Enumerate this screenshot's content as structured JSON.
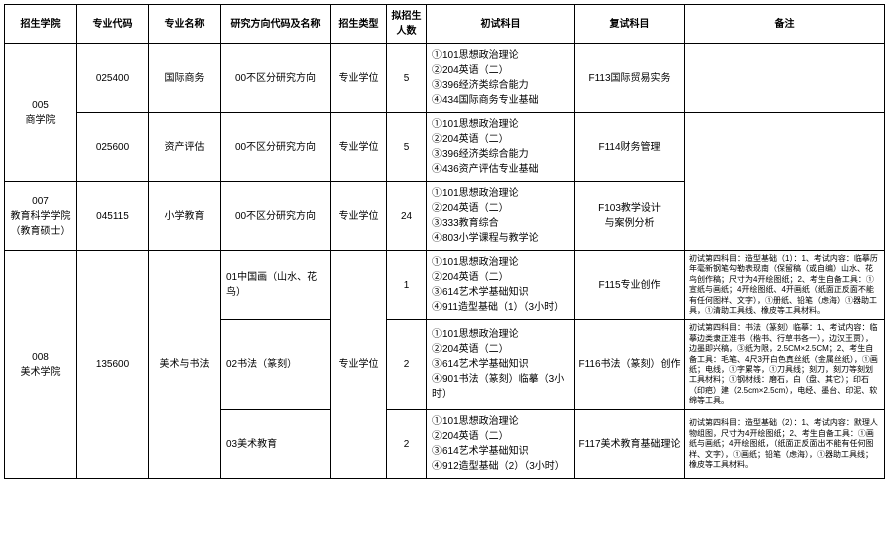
{
  "headers": {
    "college": "招生学院",
    "major_code": "专业代码",
    "major_name": "专业名称",
    "direction": "研究方向代码及名称",
    "type": "招生类型",
    "quota": "拟招生人数",
    "prelim": "初试科目",
    "retest": "复试科目",
    "notes": "备注"
  },
  "colleges": {
    "c005": "005\n商学院",
    "c007": "007\n教育科学学院\n（教育硕士）",
    "c008": "008\n美术学院"
  },
  "rows": {
    "r1": {
      "code": "025400",
      "name": "国际商务",
      "direction": "00不区分研究方向",
      "type": "专业学位",
      "quota": "5",
      "prelim": "①101思想政治理论\n②204英语（二）\n③396经济类综合能力\n④434国际商务专业基础",
      "retest": "F113国际贸易实务",
      "notes": ""
    },
    "r2": {
      "code": "025600",
      "name": "资产评估",
      "direction": "00不区分研究方向",
      "type": "专业学位",
      "quota": "5",
      "prelim": "①101思想政治理论\n②204英语（二）\n③396经济类综合能力\n④436资产评估专业基础",
      "retest": "F114财务管理",
      "notes": ""
    },
    "r3": {
      "code": "045115",
      "name": "小学教育",
      "direction": "00不区分研究方向",
      "type": "专业学位",
      "quota": "24",
      "prelim": "①101思想政治理论\n②204英语（二）\n③333教育综合\n④803小学课程与教学论",
      "retest": "F103教学设计\n与案例分析",
      "notes": ""
    },
    "r4": {
      "code": "135600",
      "name": "美术与书法",
      "direction": "01中国画（山水、花鸟）",
      "type": "专业学位",
      "quota": "1",
      "prelim": "①101思想政治理论\n②204英语（二）\n③614艺术学基础知识\n④911造型基础（1）（3小时）",
      "retest": "F115专业创作",
      "notes": "初试第四科目：造型基础（1）：1、考试内容：临摹历年毫新钢笔勾勒表现南（保留稿（或自编）山水、花鸟创作稿；尺寸为4开绘图纸；2、考生自备工具：①宣纸与画纸；4开绘图纸、4开画纸（纸面正反面不能有任何图样、文字），①册纸、铅笔（虑海）①器助工具，①清助工具线、橡皮等工具材料。"
    },
    "r5": {
      "direction": "02书法（篆刻）",
      "quota": "2",
      "prelim": "①101思想政治理论\n②204英语（二）\n③614艺术学基础知识\n④901书法（篆刻）临摹（3小时）",
      "retest": "F116书法（篆刻）创作",
      "notes": "初试第四科目：书法（篆刻）临摹：1、考试内容：临摹边类隶正准书（楷书、行草书各一），边汉王贾），边墨即兴稿，③纸为限，2.5CM×2.5CM；2、考生自备工具：毛笔、4尺3开白色真丝纸（金属丝纸），①画纸；电线，①字累等，①刀具线；刻刀，刻刀等刻划工具材料；①钢材线：磨石，白（盘、其它）；印石（印疤）建（2.5cm×2.5cm），电经、墨台、印泥、软绵等工具。"
    },
    "r6": {
      "direction": "03美术教育",
      "quota": "2",
      "prelim": "①101思想政治理论\n②204英语（二）\n③614艺术学基础知识\n④912造型基础（2）（3小时）",
      "retest": "F117美术教育基础理论",
      "notes": "初试第四科目：造型基础（2）：1、考试内容：默理人物组图，尺寸为4开绘图纸；2、考生自备工具：①画纸与画纸；4开绘图纸，（纸面正反面出不能有任何图样、文字），①画纸；铅笔（虑海），①器助工具线；橡皮等工具材料。"
    }
  }
}
